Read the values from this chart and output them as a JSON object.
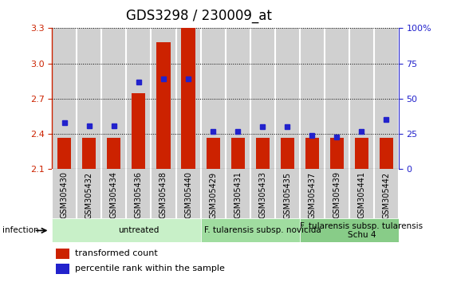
{
  "title": "GDS3298 / 230009_at",
  "samples": [
    "GSM305430",
    "GSM305432",
    "GSM305434",
    "GSM305436",
    "GSM305438",
    "GSM305440",
    "GSM305429",
    "GSM305431",
    "GSM305433",
    "GSM305435",
    "GSM305437",
    "GSM305439",
    "GSM305441",
    "GSM305442"
  ],
  "bar_values": [
    2.37,
    2.37,
    2.37,
    2.75,
    3.18,
    3.3,
    2.37,
    2.37,
    2.37,
    2.37,
    2.37,
    2.37,
    2.37,
    2.37
  ],
  "dot_values": [
    33,
    31,
    31,
    62,
    64,
    64,
    27,
    27,
    30,
    30,
    24,
    23,
    27,
    35
  ],
  "ylim_left": [
    2.1,
    3.3
  ],
  "ylim_right": [
    0,
    100
  ],
  "yticks_left": [
    2.1,
    2.4,
    2.7,
    3.0,
    3.3
  ],
  "yticks_right": [
    0,
    25,
    50,
    75,
    100
  ],
  "bar_color": "#cc2200",
  "dot_color": "#2222cc",
  "col_bg_color": "#d0d0d0",
  "col_sep_color": "#ffffff",
  "groups": [
    {
      "label": "untreated",
      "start": 0,
      "end": 6,
      "color": "#c8f0c8"
    },
    {
      "label": "F. tularensis subsp. novicida",
      "start": 6,
      "end": 10,
      "color": "#a0dda0"
    },
    {
      "label": "F. tularensis subsp. tularensis\nSchu 4",
      "start": 10,
      "end": 14,
      "color": "#88cc88"
    }
  ],
  "infection_label": "infection",
  "legend_bar_label": "transformed count",
  "legend_dot_label": "percentile rank within the sample",
  "title_fontsize": 12,
  "tick_fontsize": 8,
  "sample_label_fontsize": 7,
  "group_label_fontsize": 7.5
}
